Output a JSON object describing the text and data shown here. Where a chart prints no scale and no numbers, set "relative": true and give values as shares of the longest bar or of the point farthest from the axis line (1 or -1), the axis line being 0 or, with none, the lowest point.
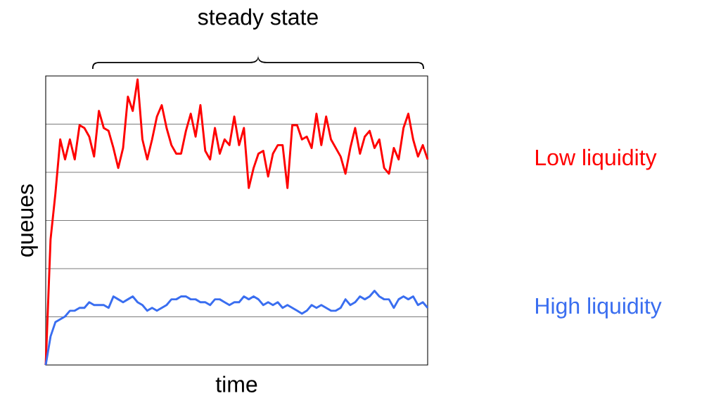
{
  "chart_data": {
    "type": "line",
    "relative": true,
    "xlabel": "time",
    "ylabel": "queues",
    "grid": "y",
    "annotations": [
      "steady state"
    ],
    "categories": [
      null,
      null,
      null,
      null,
      null,
      null,
      null,
      null,
      null,
      null,
      null,
      null,
      null,
      null,
      null,
      null,
      null,
      null,
      null,
      null,
      null,
      null,
      null,
      null,
      null,
      null,
      null,
      null,
      null,
      null,
      null,
      null,
      null,
      null,
      null,
      null,
      null,
      null,
      null,
      null,
      null,
      null,
      null,
      null,
      null,
      null,
      null,
      null,
      null,
      null,
      null,
      null,
      null,
      null,
      null,
      null,
      null,
      null,
      null,
      null,
      null,
      null,
      null,
      null,
      null,
      null,
      null,
      null,
      null,
      null,
      null,
      null,
      null,
      null,
      null,
      null,
      null,
      null,
      null,
      null
    ],
    "series": [
      {
        "name": "Low liquidity",
        "color": "#ff0000",
        "values": [
          0,
          0.44,
          0.6,
          0.79,
          0.72,
          0.79,
          0.72,
          0.84,
          0.83,
          0.8,
          0.73,
          0.89,
          0.83,
          0.82,
          0.76,
          0.69,
          0.76,
          0.94,
          0.89,
          1,
          0.79,
          0.72,
          0.79,
          0.87,
          0.91,
          0.83,
          0.77,
          0.74,
          0.74,
          0.82,
          0.88,
          0.8,
          0.91,
          0.75,
          0.72,
          0.83,
          0.74,
          0.79,
          0.77,
          0.87,
          0.77,
          0.83,
          0.62,
          0.69,
          0.74,
          0.75,
          0.66,
          0.74,
          0.77,
          0.77,
          0.62,
          0.84,
          0.84,
          0.79,
          0.8,
          0.76,
          0.88,
          0.77,
          0.87,
          0.79,
          0.76,
          0.73,
          0.67,
          0.76,
          0.83,
          0.74,
          0.8,
          0.82,
          0.76,
          0.79,
          0.69,
          0.67,
          0.76,
          0.72,
          0.83,
          0.88,
          0.79,
          0.73,
          0.77,
          0.72
        ]
      },
      {
        "name": "High liquidity",
        "color": "#3a6ef0",
        "values": [
          0,
          0.1,
          0.15,
          0.16,
          0.17,
          0.19,
          0.19,
          0.2,
          0.2,
          0.22,
          0.21,
          0.21,
          0.21,
          0.2,
          0.24,
          0.23,
          0.22,
          0.23,
          0.24,
          0.22,
          0.21,
          0.19,
          0.2,
          0.19,
          0.2,
          0.21,
          0.23,
          0.23,
          0.24,
          0.24,
          0.23,
          0.23,
          0.22,
          0.22,
          0.21,
          0.23,
          0.23,
          0.22,
          0.21,
          0.22,
          0.22,
          0.24,
          0.23,
          0.24,
          0.23,
          0.21,
          0.22,
          0.21,
          0.22,
          0.2,
          0.21,
          0.2,
          0.19,
          0.18,
          0.19,
          0.21,
          0.2,
          0.21,
          0.2,
          0.19,
          0.19,
          0.2,
          0.23,
          0.21,
          0.22,
          0.24,
          0.23,
          0.24,
          0.26,
          0.24,
          0.23,
          0.23,
          0.2,
          0.23,
          0.24,
          0.23,
          0.24,
          0.21,
          0.22,
          0.2
        ]
      }
    ]
  }
}
